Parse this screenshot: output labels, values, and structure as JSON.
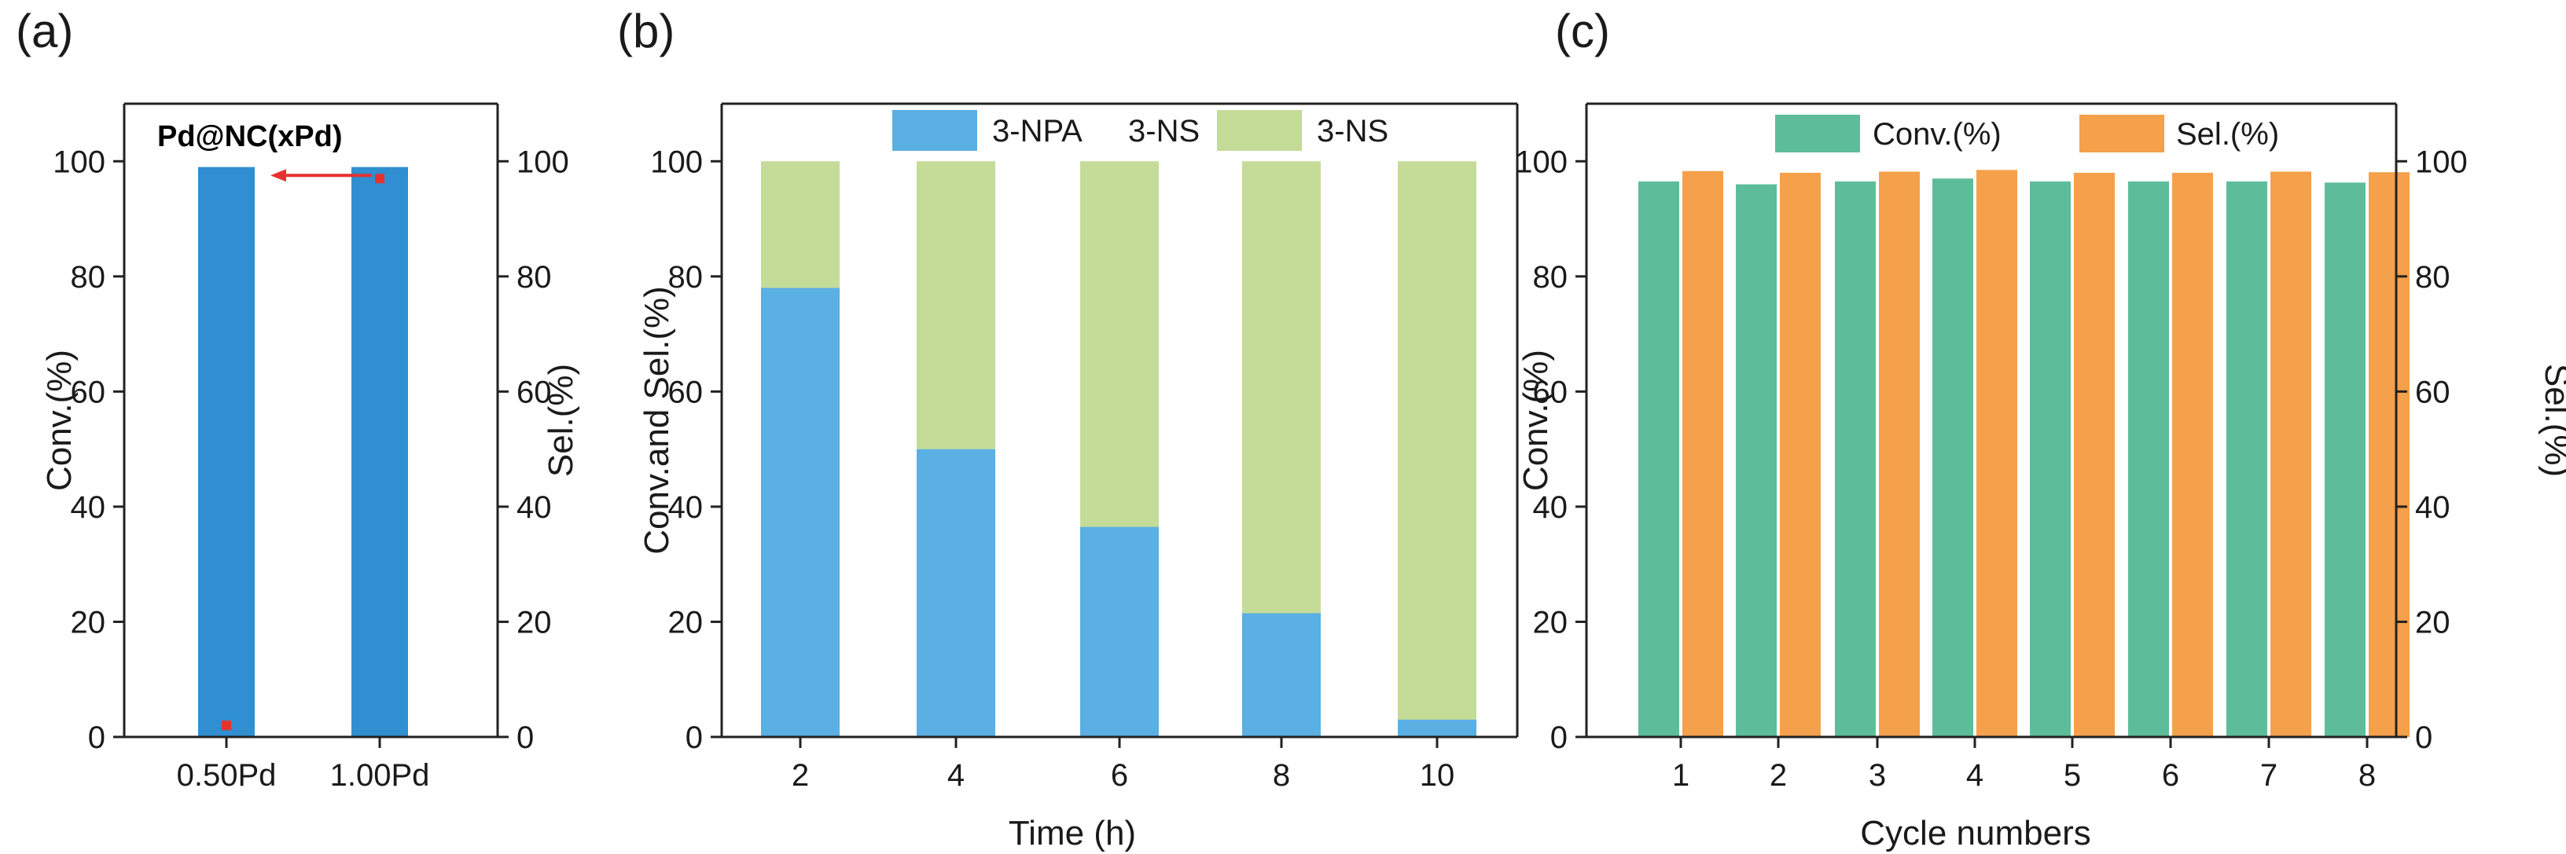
{
  "colors": {
    "axis": "#222222",
    "conv_red": "#e8312f",
    "bar_a": "#2f8fd0",
    "npa_blue": "#5aafe3",
    "ns_green": "#c4dc98",
    "conv_teal": "#5dbd9b",
    "sel_orange": "#f5a04a"
  },
  "chart_data": [
    {
      "panel": "(a)",
      "type": "bar",
      "title": "Pd@NC(xPd)",
      "categories": [
        "0.50Pd",
        "1.00Pd"
      ],
      "series": [
        {
          "name": "Sel.(%)",
          "axis": "right",
          "values": [
            99,
            99
          ]
        },
        {
          "name": "Conv.(%)",
          "axis": "left",
          "values": [
            2,
            97
          ]
        }
      ],
      "ylabel": "Conv.(%)",
      "y2label": "Sel.(%)",
      "ylim": [
        0,
        110
      ],
      "y2lim": [
        0,
        110
      ],
      "yticks": [
        "0",
        "20",
        "40",
        "60",
        "80",
        "100"
      ],
      "y2ticks": [
        "0",
        "20",
        "40",
        "60",
        "80",
        "100"
      ],
      "xlabel": "",
      "annotation": "arrow pointing left toward the Conv. axis"
    },
    {
      "panel": "(b)",
      "type": "bar",
      "stacked": true,
      "categories": [
        "2",
        "4",
        "6",
        "8",
        "10"
      ],
      "series": [
        {
          "name": "3-NPA",
          "values": [
            78,
            50,
            36.5,
            21.5,
            3
          ]
        },
        {
          "name": "3-NS",
          "values": [
            22,
            50,
            63.5,
            78.5,
            97
          ]
        }
      ],
      "xlabel": "Time (h)",
      "ylabel": "Conv.and Sel.(%)",
      "ylim": [
        0,
        110
      ],
      "yticks": [
        "0",
        "20",
        "40",
        "60",
        "80",
        "100"
      ],
      "legend": [
        "3-NPA",
        "3-NS"
      ],
      "legend_position": "top"
    },
    {
      "panel": "(c)",
      "type": "bar",
      "categories": [
        "1",
        "2",
        "3",
        "4",
        "5",
        "6",
        "7",
        "8"
      ],
      "series": [
        {
          "name": "Conv.(%)",
          "axis": "left",
          "values": [
            96.5,
            96,
            96.5,
            97,
            96.5,
            96.5,
            96.5,
            96.3
          ]
        },
        {
          "name": "Sel.(%)",
          "axis": "right",
          "values": [
            98.3,
            98,
            98.2,
            98.5,
            98,
            98,
            98.2,
            98.1
          ]
        }
      ],
      "xlabel": "Cycle numbers",
      "ylabel": "Conv.(%)",
      "y2label": "Sel.(%)",
      "ylim": [
        0,
        110
      ],
      "y2lim": [
        0,
        110
      ],
      "yticks": [
        "0",
        "20",
        "40",
        "60",
        "80",
        "100"
      ],
      "y2ticks": [
        "0",
        "20",
        "40",
        "60",
        "80",
        "100"
      ],
      "legend": [
        "Conv.(%)",
        "Sel.(%)"
      ],
      "legend_position": "top"
    }
  ]
}
